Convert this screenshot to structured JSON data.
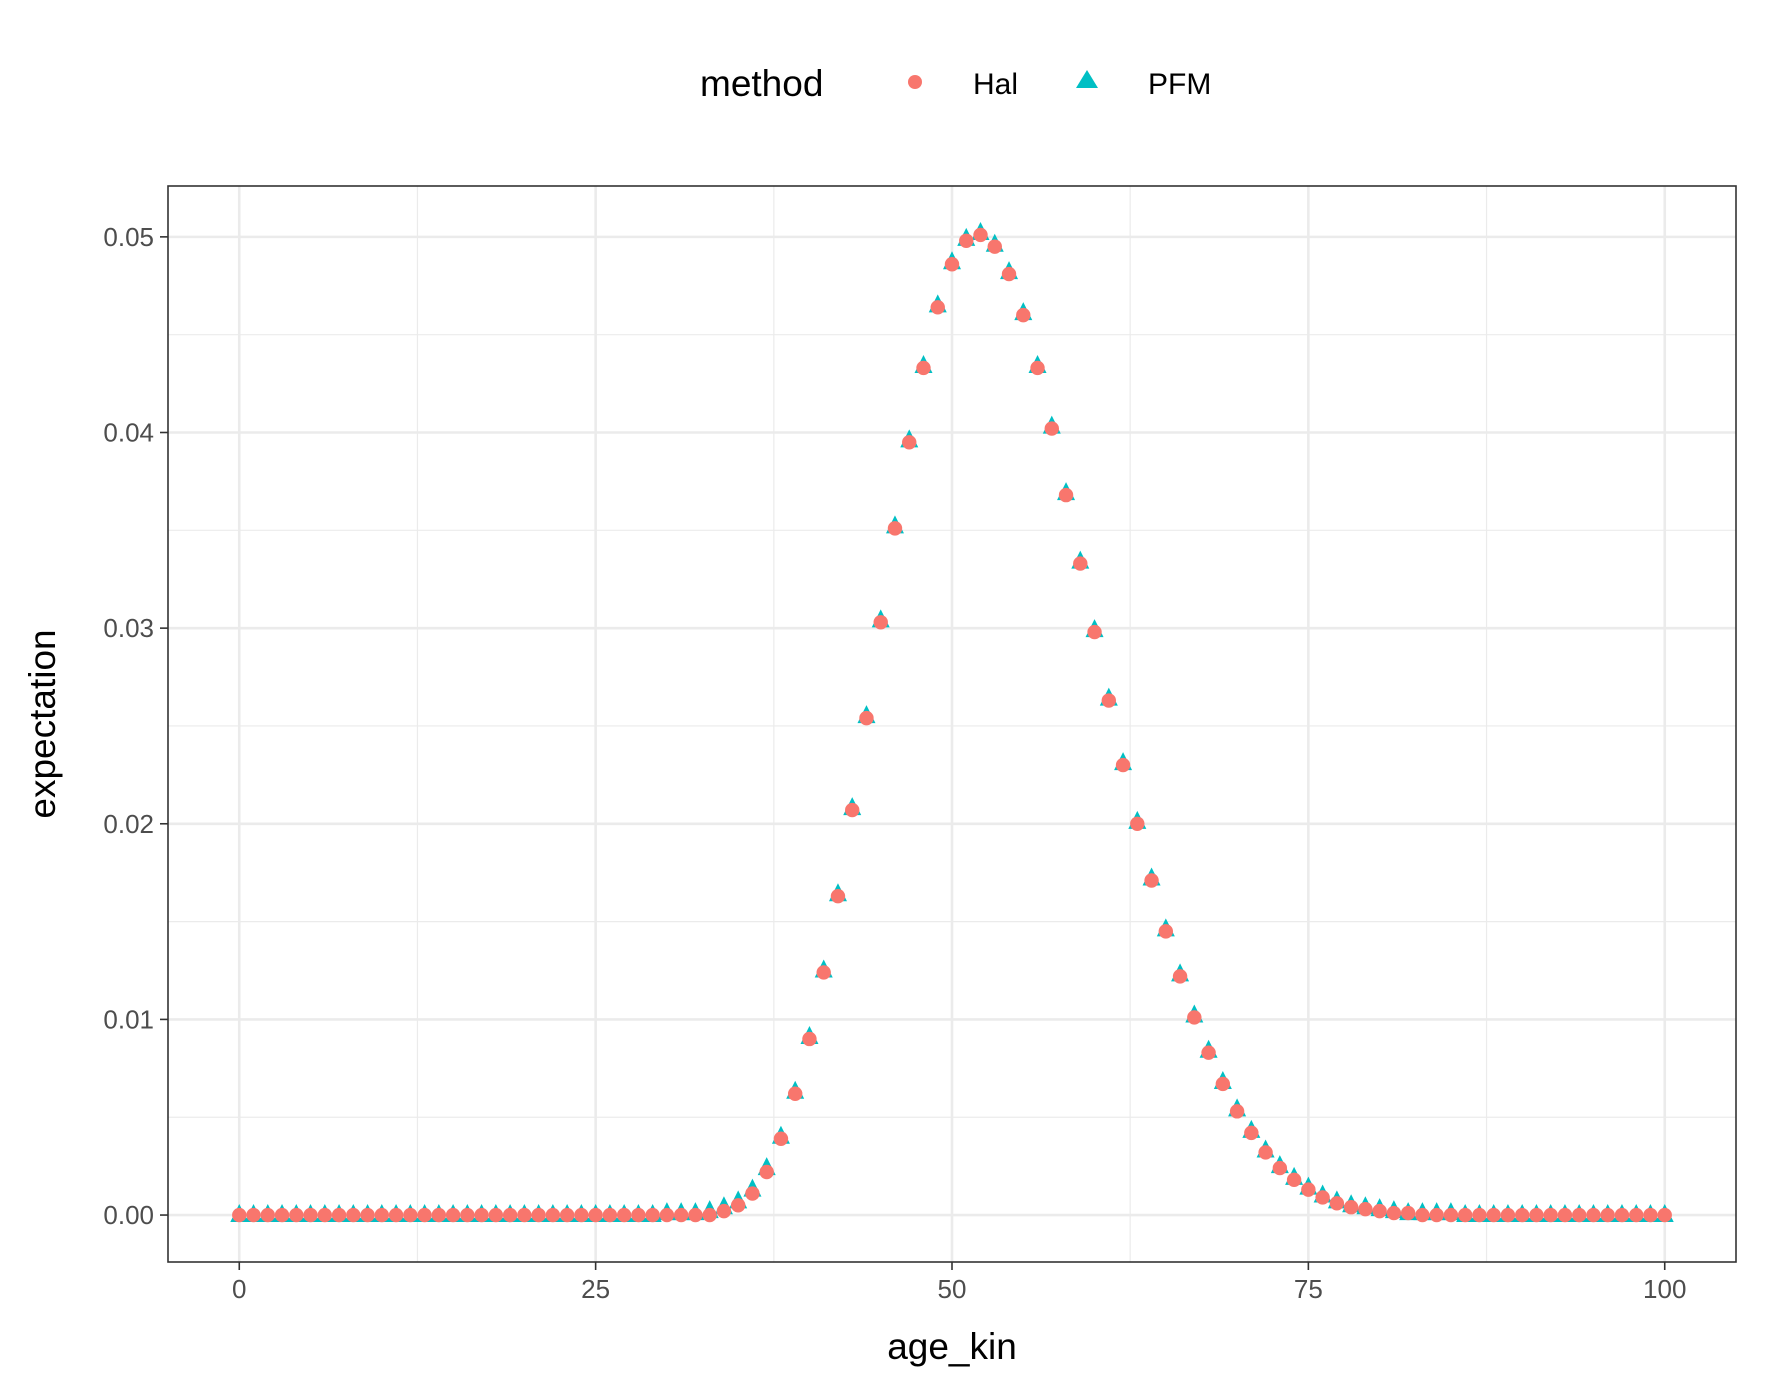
{
  "chart_data": {
    "type": "scatter",
    "title": "",
    "xlabel": "age_kin",
    "ylabel": "expectation",
    "xlim": [
      -5,
      105
    ],
    "ylim": [
      -0.0024,
      0.0526
    ],
    "x_ticks": [
      0,
      25,
      50,
      75,
      100
    ],
    "x_tick_labels": [
      "0",
      "25",
      "50",
      "75",
      "100"
    ],
    "y_ticks": [
      0,
      0.01,
      0.02,
      0.03,
      0.04,
      0.05
    ],
    "y_tick_labels": [
      "0.00",
      "0.01",
      "0.02",
      "0.03",
      "0.04",
      "0.05"
    ],
    "grid": true,
    "legend": {
      "title": "method",
      "position": "top",
      "entries": [
        {
          "label": "Hal",
          "shape": "circle",
          "color": "#F8766D"
        },
        {
          "label": "PFM",
          "shape": "triangle",
          "color": "#00BFC4"
        }
      ]
    },
    "series": [
      {
        "name": "PFM",
        "shape": "triangle",
        "color": "#00BFC4",
        "x": [
          0,
          1,
          2,
          3,
          4,
          5,
          6,
          7,
          8,
          9,
          10,
          11,
          12,
          13,
          14,
          15,
          16,
          17,
          18,
          19,
          20,
          21,
          22,
          23,
          24,
          25,
          26,
          27,
          28,
          29,
          30,
          31,
          32,
          33,
          34,
          35,
          36,
          37,
          38,
          39,
          40,
          41,
          42,
          43,
          44,
          45,
          46,
          47,
          48,
          49,
          50,
          51,
          52,
          53,
          54,
          55,
          56,
          57,
          58,
          59,
          60,
          61,
          62,
          63,
          64,
          65,
          66,
          67,
          68,
          69,
          70,
          71,
          72,
          73,
          74,
          75,
          76,
          77,
          78,
          79,
          80,
          81,
          82,
          83,
          84,
          85,
          86,
          87,
          88,
          89,
          90,
          91,
          92,
          93,
          94,
          95,
          96,
          97,
          98,
          99,
          100
        ],
        "y": [
          0,
          0,
          0,
          0,
          0,
          0,
          0,
          0,
          0,
          0,
          0,
          0,
          0,
          0,
          0,
          0,
          0,
          0,
          0,
          0,
          0,
          0,
          0,
          0,
          0,
          0,
          0,
          0,
          0,
          0,
          0.0001,
          0.0001,
          0.0001,
          0.0002,
          0.0004,
          0.0007,
          0.0013,
          0.0024,
          0.004,
          0.0063,
          0.0091,
          0.0125,
          0.0164,
          0.0208,
          0.0255,
          0.0304,
          0.0352,
          0.0396,
          0.0434,
          0.0465,
          0.0487,
          0.0499,
          0.0502,
          0.0496,
          0.0482,
          0.0461,
          0.0434,
          0.0403,
          0.0369,
          0.0334,
          0.0299,
          0.0264,
          0.0231,
          0.0201,
          0.0172,
          0.0146,
          0.0123,
          0.0102,
          0.0084,
          0.0068,
          0.0054,
          0.0043,
          0.0033,
          0.0025,
          0.0019,
          0.0014,
          0.001,
          0.0007,
          0.0005,
          0.0004,
          0.0003,
          0.0002,
          0.0001,
          0.0001,
          0.0001,
          0.0001,
          0,
          0,
          0,
          0,
          0,
          0,
          0,
          0,
          0,
          0,
          0,
          0,
          0,
          0,
          0
        ]
      },
      {
        "name": "Hal",
        "shape": "circle",
        "color": "#F8766D",
        "x": [
          0,
          1,
          2,
          3,
          4,
          5,
          6,
          7,
          8,
          9,
          10,
          11,
          12,
          13,
          14,
          15,
          16,
          17,
          18,
          19,
          20,
          21,
          22,
          23,
          24,
          25,
          26,
          27,
          28,
          29,
          30,
          31,
          32,
          33,
          34,
          35,
          36,
          37,
          38,
          39,
          40,
          41,
          42,
          43,
          44,
          45,
          46,
          47,
          48,
          49,
          50,
          51,
          52,
          53,
          54,
          55,
          56,
          57,
          58,
          59,
          60,
          61,
          62,
          63,
          64,
          65,
          66,
          67,
          68,
          69,
          70,
          71,
          72,
          73,
          74,
          75,
          76,
          77,
          78,
          79,
          80,
          81,
          82,
          83,
          84,
          85,
          86,
          87,
          88,
          89,
          90,
          91,
          92,
          93,
          94,
          95,
          96,
          97,
          98,
          99,
          100
        ],
        "y": [
          0,
          0,
          0,
          0,
          0,
          0,
          0,
          0,
          0,
          0,
          0,
          0,
          0,
          0,
          0,
          0,
          0,
          0,
          0,
          0,
          0,
          0,
          0,
          0,
          0,
          0,
          0,
          0,
          0,
          0,
          0,
          0,
          0,
          0,
          0.0002,
          0.0005,
          0.0011,
          0.0022,
          0.0039,
          0.0062,
          0.009,
          0.0124,
          0.0163,
          0.0207,
          0.0254,
          0.0303,
          0.0351,
          0.0395,
          0.0433,
          0.0464,
          0.0486,
          0.0498,
          0.0501,
          0.0495,
          0.0481,
          0.046,
          0.0433,
          0.0402,
          0.0368,
          0.0333,
          0.0298,
          0.0263,
          0.023,
          0.02,
          0.0171,
          0.0145,
          0.0122,
          0.0101,
          0.0083,
          0.0067,
          0.0053,
          0.0042,
          0.0032,
          0.0024,
          0.0018,
          0.0013,
          0.0009,
          0.0006,
          0.0004,
          0.0003,
          0.0002,
          0.0001,
          0.0001,
          0,
          0,
          0,
          0,
          0,
          0,
          0,
          0,
          0,
          0,
          0,
          0,
          0,
          0,
          0,
          0,
          0,
          0
        ]
      }
    ]
  }
}
